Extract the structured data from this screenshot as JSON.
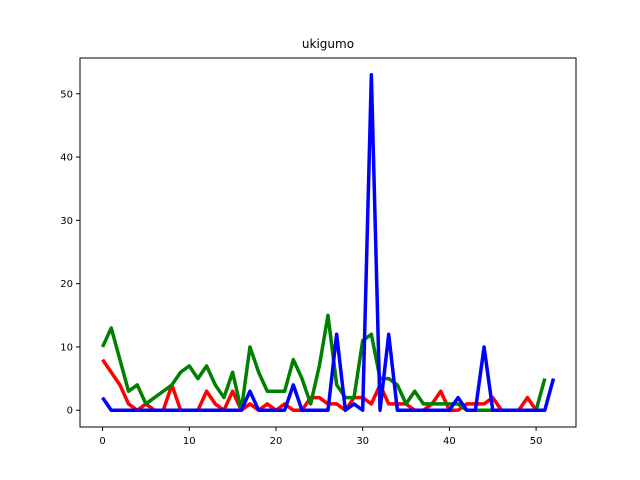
{
  "chart_data": {
    "type": "line",
    "title": "ukigumo",
    "xlabel": "",
    "ylabel": "",
    "xlim": [
      -2.6,
      54.6
    ],
    "ylim": [
      -2.65,
      55.65
    ],
    "xticks": [
      0,
      10,
      20,
      30,
      40,
      50
    ],
    "yticks": [
      0,
      10,
      20,
      30,
      40,
      50
    ],
    "grid": false,
    "series": [
      {
        "color": "#ff0000",
        "x": [
          0,
          1,
          2,
          3,
          4,
          5,
          6,
          7,
          8,
          9,
          10,
          11,
          12,
          13,
          14,
          15,
          16,
          17,
          18,
          19,
          20,
          21,
          22,
          23,
          24,
          25,
          26,
          27,
          28,
          29,
          30,
          31,
          32,
          33,
          34,
          35,
          36,
          37,
          38,
          39,
          40,
          41,
          42,
          43,
          44,
          45,
          46,
          47,
          48,
          49,
          50
        ],
        "values": [
          8,
          6,
          4,
          1,
          0,
          1,
          0,
          0,
          4,
          0,
          0,
          0,
          3,
          1,
          0,
          3,
          0,
          1,
          0,
          1,
          0,
          1,
          0,
          0,
          2,
          2,
          1,
          1,
          0,
          2,
          2,
          1,
          4,
          1,
          1,
          1,
          0,
          0,
          1,
          3,
          0,
          0,
          1,
          1,
          1,
          2,
          0,
          0,
          0,
          2,
          0
        ]
      },
      {
        "color": "#008000",
        "x": [
          0,
          1,
          2,
          3,
          4,
          5,
          6,
          7,
          8,
          9,
          10,
          11,
          12,
          13,
          14,
          15,
          16,
          17,
          18,
          19,
          20,
          21,
          22,
          23,
          24,
          25,
          26,
          27,
          28,
          29,
          30,
          31,
          32,
          33,
          34,
          35,
          36,
          37,
          38,
          39,
          40,
          41,
          42,
          43,
          44,
          45,
          46,
          47,
          48,
          49,
          50,
          51
        ],
        "values": [
          10,
          13,
          8,
          3,
          4,
          1,
          2,
          3,
          4,
          6,
          7,
          5,
          7,
          4,
          2,
          6,
          0,
          10,
          6,
          3,
          3,
          3,
          8,
          5,
          1,
          7,
          15,
          4,
          2,
          2,
          11,
          12,
          5,
          5,
          4,
          1,
          3,
          1,
          1,
          1,
          1,
          1,
          0,
          0,
          0,
          0,
          0,
          0,
          0,
          0,
          0,
          5
        ]
      },
      {
        "color": "#0000ff",
        "x": [
          0,
          1,
          2,
          3,
          4,
          5,
          6,
          7,
          8,
          9,
          10,
          11,
          12,
          13,
          14,
          15,
          16,
          17,
          18,
          19,
          20,
          21,
          22,
          23,
          24,
          25,
          26,
          27,
          28,
          29,
          30,
          31,
          32,
          33,
          34,
          35,
          36,
          37,
          38,
          39,
          40,
          41,
          42,
          43,
          44,
          45,
          46,
          47,
          48,
          49,
          50,
          51,
          52
        ],
        "values": [
          2,
          0,
          0,
          0,
          0,
          0,
          0,
          0,
          0,
          0,
          0,
          0,
          0,
          0,
          0,
          0,
          0,
          3,
          0,
          0,
          0,
          0,
          4,
          0,
          0,
          0,
          0,
          12,
          0,
          1,
          0,
          53,
          0,
          12,
          0,
          0,
          0,
          0,
          0,
          0,
          0,
          2,
          0,
          0,
          10,
          0,
          0,
          0,
          0,
          0,
          0,
          0,
          5
        ]
      }
    ]
  }
}
